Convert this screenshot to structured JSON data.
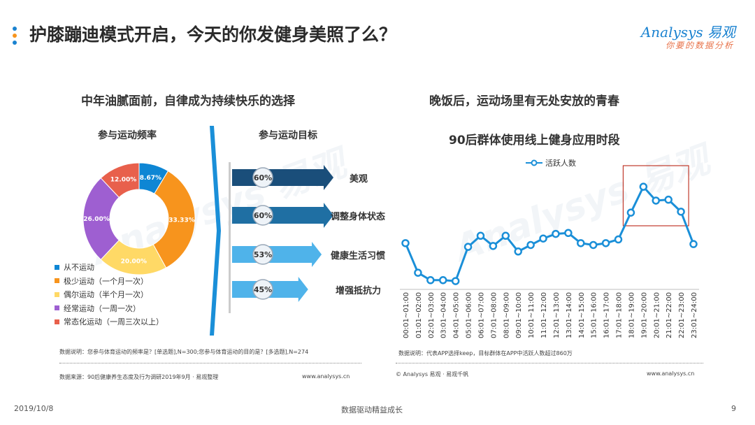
{
  "header": {
    "title": "护膝蹦迪模式开启，今天的你发健身美照了么？",
    "logo_main": "Analysys 易观",
    "logo_sub": "你要的数据分析"
  },
  "left": {
    "title": "中年油腻面前，自律成为持续快乐的选择",
    "freq_title": "参与运动频率",
    "goal_title": "参与运动目标",
    "note": "数据说明：您参与体育运动的频率是？[单选题],N=300;您参与体育运动的目的是？[多选题],N=274",
    "source": "数据来源：90后健康养生态度及行为调研2019年9月 · 易观整理",
    "site": "www.analysys.cn"
  },
  "right": {
    "title": "晚饭后，运动场里有无处安放的青春",
    "chart_title": "90后群体使用线上健身应用时段",
    "note": "数据说明：代表APP选择keep，目标群体在APP中活跃人数超过860万",
    "copyright": "© Analysys 易观 · 易观千帆",
    "site": "www.analysys.cn"
  },
  "footer": {
    "date": "2019/10/8",
    "center": "数据驱动精益成长",
    "page": "9"
  },
  "watermark": {
    "text": "Analysys 易观"
  },
  "colors": {
    "blue": "#0e86d4",
    "orange": "#f7941d",
    "yellow": "#ffd966",
    "purple": "#9e5fd1",
    "red": "#e8604c",
    "dark_navy": "#1a4e7a",
    "mid_navy": "#1f6fa3",
    "light_blue": "#4fb3ea",
    "line": "#1a8fd8",
    "highlight": "#c0392b"
  },
  "chart_data": [
    {
      "type": "pie",
      "title": "参与运动频率",
      "donut": true,
      "slices": [
        {
          "label": "从不运动",
          "value": 8.67,
          "text": "8.67%",
          "color": "#0e86d4"
        },
        {
          "label": "极少运动（一个月一次）",
          "value": 33.33,
          "text": "33.33%",
          "color": "#f7941d"
        },
        {
          "label": "偶尔运动（半个月一次）",
          "value": 20.0,
          "text": "20.00%",
          "color": "#ffd966"
        },
        {
          "label": "经常运动（一周一次）",
          "value": 26.0,
          "text": "26.00%",
          "color": "#9e5fd1"
        },
        {
          "label": "常态化运动（一周三次以上）",
          "value": 12.0,
          "text": "12.00%",
          "color": "#e8604c"
        }
      ],
      "legend_position": "bottom-left"
    },
    {
      "type": "bar",
      "title": "参与运动目标",
      "categories": [
        "美观",
        "调整身体状态",
        "健康生活习惯",
        "增强抵抗力"
      ],
      "values": [
        60,
        60,
        53,
        45
      ],
      "value_labels": [
        "60%",
        "60%",
        "53%",
        "45%"
      ],
      "colors": [
        "#1a4e7a",
        "#1f6fa3",
        "#4fb3ea",
        "#4fb3ea"
      ],
      "orientation": "horizontal-arrow"
    },
    {
      "type": "line",
      "title": "90后群体使用线上健身应用时段",
      "legend": [
        "活跃人数"
      ],
      "legend_position": "top",
      "x": [
        "00:01~01:00",
        "01:01~02:00",
        "02:01~03:00",
        "03:01~04:00",
        "04:01~05:00",
        "05:01~06:00",
        "06:01~07:00",
        "07:01~08:00",
        "08:01~09:00",
        "09:01~10:00",
        "10:01~11:00",
        "11:01~12:00",
        "12:01~13:00",
        "13:01~14:00",
        "14:01~15:00",
        "15:01~16:00",
        "16:01~17:00",
        "17:01~18:00",
        "18:01~19:00",
        "19:01~20:00",
        "20:01~21:00",
        "21:01~22:00",
        "22:01~23:00",
        "23:01~24:00"
      ],
      "series": [
        {
          "name": "活跃人数",
          "values": [
            50,
            18,
            10,
            10,
            9,
            46,
            58,
            47,
            58,
            41,
            48,
            55,
            60,
            61,
            50,
            48,
            50,
            54,
            83,
            111,
            96,
            97,
            84,
            49
          ]
        }
      ],
      "ylim": [
        0,
        130
      ],
      "highlight_range": [
        "18:01~19:00",
        "22:01~23:00"
      ],
      "grid": false
    }
  ]
}
